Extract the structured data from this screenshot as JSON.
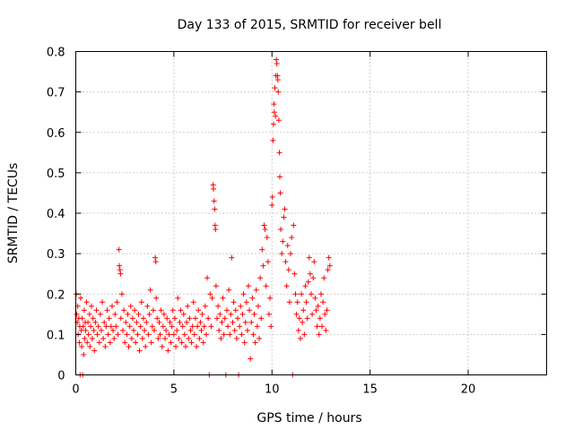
{
  "chart_data": {
    "type": "scatter",
    "title": "Day 133 of 2015, SRMTID for receiver bell",
    "xlabel": "GPS time / hours",
    "ylabel": "SRMTID / TECUs",
    "xlim": [
      0,
      24
    ],
    "ylim": [
      0,
      0.8
    ],
    "x_ticks": [
      0,
      5,
      10,
      15,
      20
    ],
    "x_tick_labels": [
      "0",
      "5",
      "10",
      "15",
      "20"
    ],
    "y_ticks": [
      0,
      0.1,
      0.2,
      0.3,
      0.4,
      0.5,
      0.6,
      0.7,
      0.8
    ],
    "y_tick_labels": [
      "0",
      "0.1",
      "0.2",
      "0.3",
      "0.4",
      "0.5",
      "0.6",
      "0.7",
      "0.8"
    ],
    "grid": true,
    "marker": "+",
    "color": "#ff0000",
    "series": [
      {
        "name": "SRMTID",
        "points": [
          [
            0.02,
            0.2
          ],
          [
            0.05,
            0.15
          ],
          [
            0.08,
            0.13
          ],
          [
            0.1,
            0.17
          ],
          [
            0.12,
            0.1
          ],
          [
            0.15,
            0.14
          ],
          [
            0.18,
            0.08
          ],
          [
            0.2,
            0.12
          ],
          [
            0.22,
            0.0
          ],
          [
            0.25,
            0.19
          ],
          [
            0.28,
            0.11
          ],
          [
            0.3,
            0.07
          ],
          [
            0.33,
            0.14
          ],
          [
            0.35,
            0.0
          ],
          [
            0.38,
            0.12
          ],
          [
            0.4,
            0.05
          ],
          [
            0.43,
            0.16
          ],
          [
            0.45,
            0.09
          ],
          [
            0.48,
            0.13
          ],
          [
            0.5,
            0.11
          ],
          [
            0.55,
            0.18
          ],
          [
            0.58,
            0.08
          ],
          [
            0.62,
            0.13
          ],
          [
            0.65,
            0.1
          ],
          [
            0.7,
            0.15
          ],
          [
            0.72,
            0.07
          ],
          [
            0.76,
            0.12
          ],
          [
            0.8,
            0.17
          ],
          [
            0.84,
            0.09
          ],
          [
            0.88,
            0.14
          ],
          [
            0.92,
            0.11
          ],
          [
            0.95,
            0.06
          ],
          [
            1.0,
            0.13
          ],
          [
            1.05,
            0.16
          ],
          [
            1.1,
            0.1
          ],
          [
            1.15,
            0.12
          ],
          [
            1.2,
            0.08
          ],
          [
            1.25,
            0.15
          ],
          [
            1.3,
            0.11
          ],
          [
            1.35,
            0.18
          ],
          [
            1.4,
            0.09
          ],
          [
            1.45,
            0.13
          ],
          [
            1.5,
            0.07
          ],
          [
            1.55,
            0.12
          ],
          [
            1.6,
            0.16
          ],
          [
            1.65,
            0.1
          ],
          [
            1.7,
            0.14
          ],
          [
            1.75,
            0.08
          ],
          [
            1.8,
            0.12
          ],
          [
            1.85,
            0.17
          ],
          [
            1.9,
            0.11
          ],
          [
            1.95,
            0.09
          ],
          [
            2.0,
            0.15
          ],
          [
            2.05,
            0.12
          ],
          [
            2.1,
            0.18
          ],
          [
            2.15,
            0.1
          ],
          [
            2.2,
            0.31
          ],
          [
            2.22,
            0.27
          ],
          [
            2.25,
            0.26
          ],
          [
            2.28,
            0.25
          ],
          [
            2.3,
            0.14
          ],
          [
            2.35,
            0.2
          ],
          [
            2.4,
            0.11
          ],
          [
            2.45,
            0.16
          ],
          [
            2.5,
            0.08
          ],
          [
            2.55,
            0.13
          ],
          [
            2.6,
            0.1
          ],
          [
            2.65,
            0.15
          ],
          [
            2.7,
            0.07
          ],
          [
            2.75,
            0.12
          ],
          [
            2.8,
            0.17
          ],
          [
            2.85,
            0.09
          ],
          [
            2.9,
            0.14
          ],
          [
            2.95,
            0.11
          ],
          [
            3.0,
            0.16
          ],
          [
            3.05,
            0.08
          ],
          [
            3.1,
            0.13
          ],
          [
            3.15,
            0.1
          ],
          [
            3.2,
            0.15
          ],
          [
            3.25,
            0.06
          ],
          [
            3.3,
            0.12
          ],
          [
            3.35,
            0.18
          ],
          [
            3.4,
            0.09
          ],
          [
            3.45,
            0.14
          ],
          [
            3.5,
            0.11
          ],
          [
            3.55,
            0.07
          ],
          [
            3.6,
            0.13
          ],
          [
            3.65,
            0.17
          ],
          [
            3.7,
            0.1
          ],
          [
            3.75,
            0.15
          ],
          [
            3.8,
            0.21
          ],
          [
            3.85,
            0.08
          ],
          [
            3.9,
            0.12
          ],
          [
            3.95,
            0.16
          ],
          [
            4.0,
            0.11
          ],
          [
            4.05,
            0.29
          ],
          [
            4.08,
            0.28
          ],
          [
            4.1,
            0.19
          ],
          [
            4.15,
            0.14
          ],
          [
            4.2,
            0.09
          ],
          [
            4.25,
            0.13
          ],
          [
            4.3,
            0.1
          ],
          [
            4.35,
            0.16
          ],
          [
            4.4,
            0.07
          ],
          [
            4.45,
            0.12
          ],
          [
            4.5,
            0.15
          ],
          [
            4.55,
            0.09
          ],
          [
            4.6,
            0.11
          ],
          [
            4.65,
            0.14
          ],
          [
            4.7,
            0.06
          ],
          [
            4.75,
            0.1
          ],
          [
            4.8,
            0.13
          ],
          [
            4.85,
            0.08
          ],
          [
            4.9,
            0.12
          ],
          [
            4.95,
            0.16
          ],
          [
            5.0,
            0.1
          ],
          [
            5.05,
            0.14
          ],
          [
            5.1,
            0.07
          ],
          [
            5.15,
            0.11
          ],
          [
            5.2,
            0.19
          ],
          [
            5.25,
            0.09
          ],
          [
            5.3,
            0.13
          ],
          [
            5.35,
            0.16
          ],
          [
            5.4,
            0.08
          ],
          [
            5.45,
            0.12
          ],
          [
            5.5,
            0.15
          ],
          [
            5.55,
            0.1
          ],
          [
            5.6,
            0.07
          ],
          [
            5.65,
            0.13
          ],
          [
            5.7,
            0.17
          ],
          [
            5.75,
            0.09
          ],
          [
            5.8,
            0.14
          ],
          [
            5.85,
            0.11
          ],
          [
            5.9,
            0.08
          ],
          [
            5.95,
            0.12
          ],
          [
            6.0,
            0.18
          ],
          [
            6.05,
            0.1
          ],
          [
            6.1,
            0.14
          ],
          [
            6.15,
            0.07
          ],
          [
            6.2,
            0.12
          ],
          [
            6.25,
            0.16
          ],
          [
            6.3,
            0.09
          ],
          [
            6.35,
            0.13
          ],
          [
            6.4,
            0.11
          ],
          [
            6.45,
            0.15
          ],
          [
            6.5,
            0.08
          ],
          [
            6.55,
            0.12
          ],
          [
            6.6,
            0.17
          ],
          [
            6.65,
            0.1
          ],
          [
            6.7,
            0.24
          ],
          [
            6.75,
            0.14
          ],
          [
            6.8,
            0.0
          ],
          [
            6.85,
            0.2
          ],
          [
            6.9,
            0.12
          ],
          [
            6.95,
            0.19
          ],
          [
            7.0,
            0.47
          ],
          [
            7.02,
            0.46
          ],
          [
            7.05,
            0.43
          ],
          [
            7.08,
            0.41
          ],
          [
            7.1,
            0.37
          ],
          [
            7.12,
            0.36
          ],
          [
            7.15,
            0.22
          ],
          [
            7.2,
            0.14
          ],
          [
            7.25,
            0.17
          ],
          [
            7.3,
            0.11
          ],
          [
            7.35,
            0.15
          ],
          [
            7.4,
            0.09
          ],
          [
            7.45,
            0.13
          ],
          [
            7.5,
            0.19
          ],
          [
            7.55,
            0.1
          ],
          [
            7.6,
            0.14
          ],
          [
            7.65,
            0.0
          ],
          [
            7.7,
            0.16
          ],
          [
            7.75,
            0.12
          ],
          [
            7.8,
            0.21
          ],
          [
            7.85,
            0.1
          ],
          [
            7.9,
            0.15
          ],
          [
            7.95,
            0.29
          ],
          [
            8.0,
            0.13
          ],
          [
            8.05,
            0.18
          ],
          [
            8.1,
            0.11
          ],
          [
            8.15,
            0.16
          ],
          [
            8.2,
            0.09
          ],
          [
            8.25,
            0.14
          ],
          [
            8.3,
            0.0
          ],
          [
            8.35,
            0.12
          ],
          [
            8.4,
            0.17
          ],
          [
            8.45,
            0.1
          ],
          [
            8.5,
            0.15
          ],
          [
            8.55,
            0.2
          ],
          [
            8.6,
            0.08
          ],
          [
            8.65,
            0.13
          ],
          [
            8.7,
            0.18
          ],
          [
            8.75,
            0.11
          ],
          [
            8.8,
            0.22
          ],
          [
            8.85,
            0.16
          ],
          [
            8.9,
            0.04
          ],
          [
            8.95,
            0.13
          ],
          [
            9.0,
            0.19
          ],
          [
            9.05,
            0.1
          ],
          [
            9.1,
            0.15
          ],
          [
            9.15,
            0.08
          ],
          [
            9.2,
            0.21
          ],
          [
            9.25,
            0.12
          ],
          [
            9.3,
            0.17
          ],
          [
            9.35,
            0.09
          ],
          [
            9.4,
            0.24
          ],
          [
            9.45,
            0.14
          ],
          [
            9.5,
            0.31
          ],
          [
            9.55,
            0.27
          ],
          [
            9.6,
            0.37
          ],
          [
            9.65,
            0.36
          ],
          [
            9.7,
            0.22
          ],
          [
            9.75,
            0.34
          ],
          [
            9.8,
            0.28
          ],
          [
            9.85,
            0.15
          ],
          [
            9.9,
            0.19
          ],
          [
            9.95,
            0.12
          ],
          [
            10.0,
            0.42
          ],
          [
            10.02,
            0.44
          ],
          [
            10.05,
            0.58
          ],
          [
            10.08,
            0.62
          ],
          [
            10.1,
            0.67
          ],
          [
            10.12,
            0.65
          ],
          [
            10.15,
            0.71
          ],
          [
            10.18,
            0.64
          ],
          [
            10.2,
            0.74
          ],
          [
            10.22,
            0.78
          ],
          [
            10.25,
            0.77
          ],
          [
            10.28,
            0.74
          ],
          [
            10.3,
            0.73
          ],
          [
            10.32,
            0.7
          ],
          [
            10.35,
            0.63
          ],
          [
            10.38,
            0.55
          ],
          [
            10.4,
            0.49
          ],
          [
            10.42,
            0.45
          ],
          [
            10.45,
            0.36
          ],
          [
            10.5,
            0.3
          ],
          [
            10.55,
            0.33
          ],
          [
            10.6,
            0.39
          ],
          [
            10.65,
            0.41
          ],
          [
            10.7,
            0.28
          ],
          [
            10.75,
            0.22
          ],
          [
            10.8,
            0.32
          ],
          [
            10.85,
            0.26
          ],
          [
            10.9,
            0.18
          ],
          [
            10.95,
            0.3
          ],
          [
            11.0,
            0.34
          ],
          [
            11.05,
            0.0
          ],
          [
            11.1,
            0.37
          ],
          [
            11.15,
            0.25
          ],
          [
            11.2,
            0.2
          ],
          [
            11.25,
            0.15
          ],
          [
            11.3,
            0.18
          ],
          [
            11.35,
            0.11
          ],
          [
            11.4,
            0.14
          ],
          [
            11.45,
            0.09
          ],
          [
            11.5,
            0.2
          ],
          [
            11.55,
            0.13
          ],
          [
            11.6,
            0.16
          ],
          [
            11.65,
            0.1
          ],
          [
            11.7,
            0.22
          ],
          [
            11.75,
            0.18
          ],
          [
            11.8,
            0.14
          ],
          [
            11.85,
            0.23
          ],
          [
            11.9,
            0.29
          ],
          [
            11.95,
            0.25
          ],
          [
            12.0,
            0.2
          ],
          [
            12.05,
            0.15
          ],
          [
            12.1,
            0.24
          ],
          [
            12.15,
            0.28
          ],
          [
            12.2,
            0.19
          ],
          [
            12.25,
            0.16
          ],
          [
            12.3,
            0.12
          ],
          [
            12.35,
            0.17
          ],
          [
            12.4,
            0.1
          ],
          [
            12.45,
            0.14
          ],
          [
            12.5,
            0.2
          ],
          [
            12.55,
            0.12
          ],
          [
            12.6,
            0.18
          ],
          [
            12.65,
            0.24
          ],
          [
            12.7,
            0.15
          ],
          [
            12.75,
            0.11
          ],
          [
            12.8,
            0.16
          ],
          [
            12.85,
            0.26
          ],
          [
            12.9,
            0.29
          ],
          [
            12.95,
            0.27
          ]
        ]
      }
    ]
  }
}
